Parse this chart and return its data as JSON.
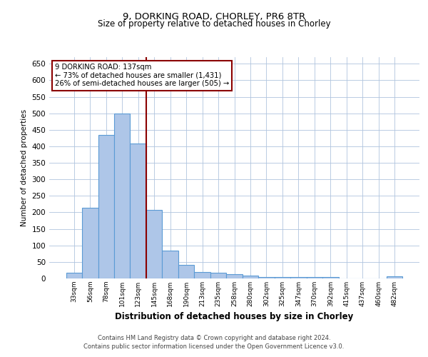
{
  "title1": "9, DORKING ROAD, CHORLEY, PR6 8TR",
  "title2": "Size of property relative to detached houses in Chorley",
  "xlabel": "Distribution of detached houses by size in Chorley",
  "ylabel": "Number of detached properties",
  "footnote1": "Contains HM Land Registry data © Crown copyright and database right 2024.",
  "footnote2": "Contains public sector information licensed under the Open Government Licence v3.0.",
  "annotation_line1": "9 DORKING ROAD: 137sqm",
  "annotation_line2": "← 73% of detached houses are smaller (1,431)",
  "annotation_line3": "26% of semi-detached houses are larger (505) →",
  "bar_labels": [
    "33sqm",
    "56sqm",
    "78sqm",
    "101sqm",
    "123sqm",
    "145sqm",
    "168sqm",
    "190sqm",
    "213sqm",
    "235sqm",
    "258sqm",
    "280sqm",
    "302sqm",
    "325sqm",
    "347sqm",
    "370sqm",
    "392sqm",
    "415sqm",
    "437sqm",
    "460sqm",
    "482sqm"
  ],
  "bar_values": [
    18,
    213,
    435,
    500,
    408,
    207,
    85,
    40,
    20,
    17,
    12,
    8,
    5,
    4,
    4,
    4,
    4,
    0,
    0,
    0,
    7
  ],
  "bar_color": "#aec6e8",
  "bar_edge_color": "#5b9bd5",
  "vline_x": 4.5,
  "vline_color": "#8b0000",
  "ylim": [
    0,
    670
  ],
  "yticks": [
    0,
    50,
    100,
    150,
    200,
    250,
    300,
    350,
    400,
    450,
    500,
    550,
    600,
    650
  ],
  "annotation_box_color": "#ffffff",
  "annotation_box_edge_color": "#8b0000",
  "grid_color": "#b0c4de",
  "background_color": "#ffffff"
}
